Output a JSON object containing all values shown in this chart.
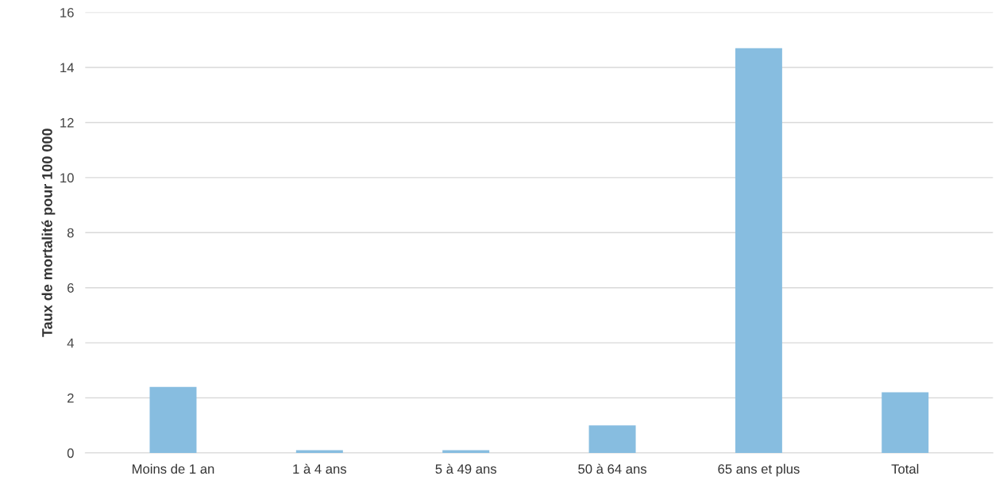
{
  "chart_data": {
    "type": "bar",
    "ylabel": "Taux de mortalité pour 100 000",
    "categories": [
      "Moins de 1 an",
      "1 à 4 ans",
      "5 à 49 ans",
      "50 à 64 ans",
      "65 ans et plus",
      "Total"
    ],
    "values": [
      2.4,
      0.1,
      0.1,
      1.0,
      14.7,
      2.2
    ],
    "color": "#87bde0",
    "ylim": [
      0,
      16
    ],
    "yticks": [
      0,
      2,
      4,
      6,
      8,
      10,
      12,
      14,
      16
    ],
    "grid": "y",
    "legend": false
  }
}
